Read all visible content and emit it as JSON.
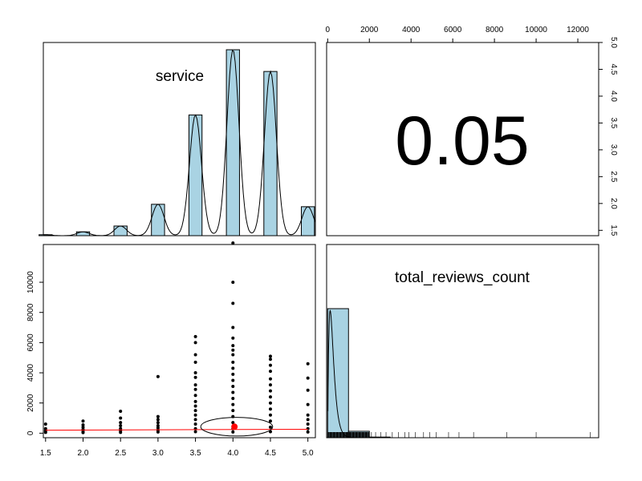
{
  "chart_data": {
    "type": "scatter",
    "variables": [
      "service",
      "total_reviews_count"
    ],
    "correlation": "0.05",
    "colors": {
      "bar_fill": "#a9d3e3",
      "fit_line": "#ff0000",
      "mean_point": "#ff0000",
      "points": "#000000"
    },
    "panels": {
      "service_histogram": {
        "type": "bar",
        "title": "service",
        "categories": [
          1.5,
          2.0,
          2.5,
          3.0,
          3.5,
          4.0,
          4.5,
          5.0
        ],
        "density": [
          0.02,
          0.08,
          0.2,
          0.65,
          2.5,
          3.85,
          3.4,
          0.6
        ],
        "ylim": [
          1.4,
          5.0
        ],
        "density_curve": true
      },
      "scatter": {
        "x_ticks": [
          "1.5",
          "2.0",
          "2.5",
          "3.0",
          "3.5",
          "4.0",
          "4.5",
          "5.0"
        ],
        "y_ticks": [
          "0",
          "2000",
          "4000",
          "6000",
          "8000",
          "10000"
        ],
        "xlim": [
          1.47,
          5.1
        ],
        "ylim": [
          -300,
          12500
        ],
        "points": [
          [
            1.5,
            600
          ],
          [
            1.5,
            300
          ],
          [
            1.5,
            150
          ],
          [
            1.5,
            50
          ],
          [
            2.0,
            800
          ],
          [
            2.0,
            550
          ],
          [
            2.0,
            400
          ],
          [
            2.0,
            250
          ],
          [
            2.0,
            120
          ],
          [
            2.0,
            40
          ],
          [
            2.5,
            1450
          ],
          [
            2.5,
            1000
          ],
          [
            2.5,
            700
          ],
          [
            2.5,
            500
          ],
          [
            2.5,
            300
          ],
          [
            2.5,
            150
          ],
          [
            2.5,
            50
          ],
          [
            3.0,
            3750
          ],
          [
            3.0,
            1100
          ],
          [
            3.0,
            900
          ],
          [
            3.0,
            700
          ],
          [
            3.0,
            500
          ],
          [
            3.0,
            350
          ],
          [
            3.0,
            200
          ],
          [
            3.0,
            80
          ],
          [
            3.5,
            6400
          ],
          [
            3.5,
            6000
          ],
          [
            3.5,
            5200
          ],
          [
            3.5,
            4700
          ],
          [
            3.5,
            4000
          ],
          [
            3.5,
            3700
          ],
          [
            3.5,
            3200
          ],
          [
            3.5,
            2900
          ],
          [
            3.5,
            2500
          ],
          [
            3.5,
            2100
          ],
          [
            3.5,
            1800
          ],
          [
            3.5,
            1500
          ],
          [
            3.5,
            1200
          ],
          [
            3.5,
            900
          ],
          [
            3.5,
            600
          ],
          [
            3.5,
            300
          ],
          [
            3.5,
            100
          ],
          [
            4.0,
            12600
          ],
          [
            4.0,
            10000
          ],
          [
            4.0,
            8600
          ],
          [
            4.0,
            7000
          ],
          [
            4.0,
            6300
          ],
          [
            4.0,
            5800
          ],
          [
            4.0,
            5500
          ],
          [
            4.0,
            5200
          ],
          [
            4.0,
            4700
          ],
          [
            4.0,
            4300
          ],
          [
            4.0,
            3900
          ],
          [
            4.0,
            3500
          ],
          [
            4.0,
            3100
          ],
          [
            4.0,
            2700
          ],
          [
            4.0,
            2300
          ],
          [
            4.0,
            1900
          ],
          [
            4.0,
            1500
          ],
          [
            4.0,
            1100
          ],
          [
            4.0,
            700
          ],
          [
            4.0,
            300
          ],
          [
            4.0,
            80
          ],
          [
            4.5,
            5100
          ],
          [
            4.5,
            4900
          ],
          [
            4.5,
            4500
          ],
          [
            4.5,
            4100
          ],
          [
            4.5,
            3600
          ],
          [
            4.5,
            3200
          ],
          [
            4.5,
            2800
          ],
          [
            4.5,
            2400
          ],
          [
            4.5,
            2000
          ],
          [
            4.5,
            1600
          ],
          [
            4.5,
            1200
          ],
          [
            4.5,
            800
          ],
          [
            4.5,
            400
          ],
          [
            4.5,
            100
          ],
          [
            5.0,
            4600
          ],
          [
            5.0,
            3650
          ],
          [
            5.0,
            2850
          ],
          [
            5.0,
            1900
          ],
          [
            5.0,
            1200
          ],
          [
            5.0,
            900
          ],
          [
            5.0,
            600
          ],
          [
            5.0,
            300
          ],
          [
            5.0,
            80
          ]
        ],
        "fit_line": [
          [
            1.5,
            200
          ],
          [
            5.0,
            260
          ]
        ],
        "mean": [
          4.02,
          430
        ],
        "ellipse": {
          "center": [
            4.05,
            430
          ],
          "x_radius": 0.48,
          "y_radius": 620
        }
      },
      "total_reviews_histogram": {
        "type": "bar",
        "title": "total_reviews_count",
        "x_ticks": [
          "0",
          "2000",
          "4000",
          "6000",
          "8000",
          "10000",
          "12000"
        ],
        "xlim": [
          -50,
          13000
        ],
        "bins": [
          {
            "from": 0,
            "to": 1000,
            "height": 1.0
          },
          {
            "from": 1000,
            "to": 2000,
            "height": 0.05
          },
          {
            "from": 2000,
            "to": 3000,
            "height": 0.005
          }
        ],
        "density_curve": true,
        "rug": true
      }
    }
  }
}
